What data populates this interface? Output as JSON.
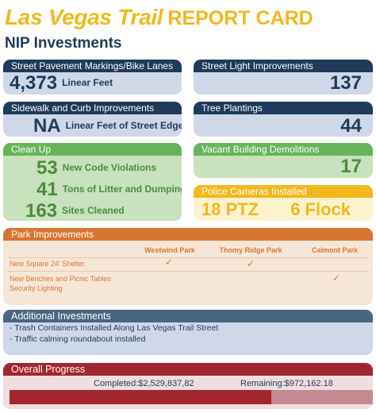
{
  "header": {
    "title": "Las Vegas Trail",
    "title_suffix": "REPORT CARD",
    "subtitle": "NIP Investments"
  },
  "cards": {
    "street_pavement": {
      "title": "Street Pavement Markings/Bike Lanes",
      "value": "4,373",
      "unit": "Linear Feet"
    },
    "street_light": {
      "title": "Street Light Improvements",
      "value": "137"
    },
    "sidewalk": {
      "title": "Sidewalk and Curb Improvements",
      "value": "NA",
      "unit": "Linear Feet of Street Edge"
    },
    "tree": {
      "title": "Tree Plantings",
      "value": "44"
    },
    "clean_up": {
      "title": "Clean Up",
      "rows": [
        {
          "value": "53",
          "label": "New Code Violations"
        },
        {
          "value": "41",
          "label": "Tons of Litter and Dumping"
        },
        {
          "value": "163",
          "label": "Sites Cleaned"
        }
      ]
    },
    "vacant": {
      "title": "Vacant Building Demolitions",
      "value": "17"
    },
    "police": {
      "title": "Police Cameras Installed",
      "ptz": "18 PTZ",
      "flock": "6 Flock"
    }
  },
  "park": {
    "title": "Park Improvements",
    "columns": [
      "Westwind Park",
      "Thomy Ridge Park",
      "Calmont Park"
    ],
    "rows": [
      {
        "label": "New Square 24' Shelter",
        "checks": [
          true,
          true,
          false
        ]
      },
      {
        "label": "New Benches and Picnic Tables",
        "label2": "Security Lighting",
        "checks": [
          false,
          false,
          true
        ]
      }
    ],
    "check_glyph": "✓"
  },
  "additional": {
    "title": "Additional Investments",
    "items": [
      "Trash Containers Installed Along Las Vegas Trail Street",
      "Traffic calming roundabout installed"
    ]
  },
  "progress": {
    "title": "Overall Progress",
    "completed_label": "Completed:$2,529,837,82",
    "remaining_label": "Remaining:$972,162.18",
    "completed_fraction": 0.72
  },
  "colors": {
    "navy": "#1f3a5a",
    "gold": "#f2b81c",
    "green": "#67b45a",
    "orange": "#d9752f",
    "red": "#a1262f"
  }
}
